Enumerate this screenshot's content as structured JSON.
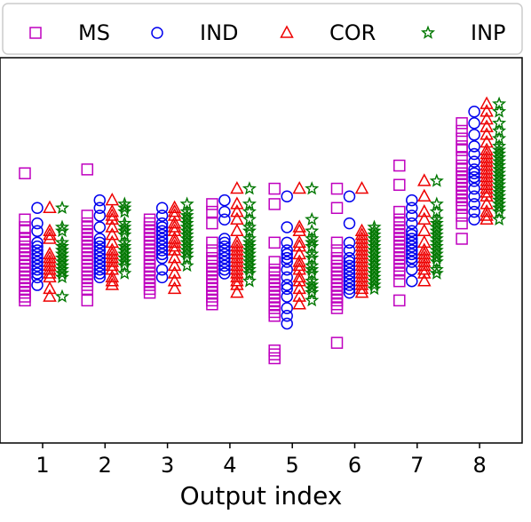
{
  "chart_data": {
    "type": "scatter",
    "xlabel": "Output index",
    "ylabel": "",
    "title": "",
    "categories": [
      "1",
      "2",
      "3",
      "4",
      "5",
      "6",
      "7",
      "8"
    ],
    "ylim": [
      0,
      1
    ],
    "y_ticks_shown": false,
    "grid": false,
    "legend_position": "top",
    "series": [
      {
        "name": "MS",
        "marker": "square",
        "color": "#bf00bf",
        "values": [
          [
            0.7,
            0.58,
            0.56,
            0.55,
            0.53,
            0.52,
            0.51,
            0.5,
            0.49,
            0.48,
            0.47,
            0.46,
            0.45,
            0.44,
            0.43,
            0.42,
            0.41,
            0.4,
            0.39,
            0.38,
            0.37
          ],
          [
            0.71,
            0.59,
            0.57,
            0.56,
            0.55,
            0.54,
            0.53,
            0.52,
            0.51,
            0.5,
            0.49,
            0.48,
            0.47,
            0.46,
            0.45,
            0.44,
            0.43,
            0.42,
            0.41,
            0.4,
            0.37
          ],
          [
            0.58,
            0.57,
            0.56,
            0.55,
            0.54,
            0.53,
            0.52,
            0.51,
            0.5,
            0.49,
            0.48,
            0.47,
            0.46,
            0.45,
            0.44,
            0.43,
            0.42,
            0.41,
            0.4,
            0.39
          ],
          [
            0.62,
            0.6,
            0.57,
            0.52,
            0.5,
            0.48,
            0.47,
            0.46,
            0.45,
            0.44,
            0.43,
            0.42,
            0.41,
            0.4,
            0.39,
            0.38,
            0.37,
            0.36
          ],
          [
            0.66,
            0.62,
            0.52,
            0.47,
            0.45,
            0.44,
            0.43,
            0.42,
            0.41,
            0.4,
            0.39,
            0.38,
            0.37,
            0.36,
            0.35,
            0.34,
            0.33,
            0.24,
            0.23,
            0.22
          ],
          [
            0.66,
            0.61,
            0.52,
            0.5,
            0.48,
            0.47,
            0.46,
            0.45,
            0.44,
            0.43,
            0.42,
            0.41,
            0.4,
            0.39,
            0.38,
            0.37,
            0.36,
            0.35,
            0.26
          ],
          [
            0.72,
            0.67,
            0.6,
            0.58,
            0.57,
            0.56,
            0.55,
            0.54,
            0.53,
            0.52,
            0.51,
            0.5,
            0.49,
            0.48,
            0.47,
            0.46,
            0.45,
            0.44,
            0.42,
            0.37
          ],
          [
            0.83,
            0.81,
            0.79,
            0.77,
            0.76,
            0.74,
            0.72,
            0.71,
            0.7,
            0.69,
            0.68,
            0.67,
            0.66,
            0.65,
            0.64,
            0.63,
            0.62,
            0.61,
            0.59,
            0.57,
            0.53
          ]
        ]
      },
      {
        "name": "IND",
        "marker": "circle",
        "color": "#0000ee",
        "values": [
          [
            0.61,
            0.57,
            0.55,
            0.52,
            0.51,
            0.5,
            0.49,
            0.48,
            0.47,
            0.46,
            0.45,
            0.44,
            0.43,
            0.41
          ],
          [
            0.63,
            0.61,
            0.59,
            0.56,
            0.53,
            0.52,
            0.51,
            0.5,
            0.49,
            0.48,
            0.47,
            0.46,
            0.45,
            0.44,
            0.43
          ],
          [
            0.61,
            0.59,
            0.57,
            0.56,
            0.55,
            0.54,
            0.53,
            0.52,
            0.51,
            0.5,
            0.49,
            0.48,
            0.45,
            0.43
          ],
          [
            0.63,
            0.6,
            0.58,
            0.53,
            0.52,
            0.51,
            0.5,
            0.49,
            0.48,
            0.47,
            0.46,
            0.45,
            0.44
          ],
          [
            0.64,
            0.56,
            0.52,
            0.5,
            0.49,
            0.48,
            0.47,
            0.45,
            0.43,
            0.41,
            0.4,
            0.38,
            0.35,
            0.33,
            0.31
          ],
          [
            0.64,
            0.57,
            0.52,
            0.5,
            0.48,
            0.47,
            0.46,
            0.45,
            0.44,
            0.43,
            0.42,
            0.41,
            0.4,
            0.39
          ],
          [
            0.63,
            0.61,
            0.59,
            0.57,
            0.55,
            0.54,
            0.53,
            0.52,
            0.51,
            0.5,
            0.49,
            0.48,
            0.47,
            0.45,
            0.42
          ],
          [
            0.86,
            0.83,
            0.8,
            0.77,
            0.75,
            0.73,
            0.71,
            0.7,
            0.69,
            0.68,
            0.66,
            0.64,
            0.62,
            0.6,
            0.58
          ]
        ]
      },
      {
        "name": "COR",
        "marker": "triangle",
        "color": "#ee0000",
        "values": [
          [
            0.61,
            0.55,
            0.54,
            0.53,
            0.49,
            0.48,
            0.47,
            0.46,
            0.45,
            0.44,
            0.43,
            0.4,
            0.38
          ],
          [
            0.63,
            0.6,
            0.59,
            0.58,
            0.56,
            0.54,
            0.52,
            0.5,
            0.49,
            0.48,
            0.47,
            0.46,
            0.45,
            0.43,
            0.42,
            0.41
          ],
          [
            0.61,
            0.6,
            0.59,
            0.57,
            0.56,
            0.55,
            0.53,
            0.52,
            0.51,
            0.5,
            0.48,
            0.46,
            0.44,
            0.42,
            0.4
          ],
          [
            0.66,
            0.62,
            0.6,
            0.58,
            0.55,
            0.52,
            0.51,
            0.5,
            0.49,
            0.48,
            0.47,
            0.46,
            0.45,
            0.44,
            0.43,
            0.42,
            0.41,
            0.39
          ],
          [
            0.66,
            0.56,
            0.55,
            0.52,
            0.51,
            0.49,
            0.47,
            0.46,
            0.45,
            0.43,
            0.42,
            0.4,
            0.38,
            0.36
          ],
          [
            0.66,
            0.55,
            0.54,
            0.53,
            0.52,
            0.51,
            0.5,
            0.49,
            0.48,
            0.47,
            0.46,
            0.45,
            0.44,
            0.43,
            0.42,
            0.41,
            0.4,
            0.39
          ],
          [
            0.68,
            0.64,
            0.6,
            0.58,
            0.55,
            0.52,
            0.5,
            0.49,
            0.48,
            0.47,
            0.46,
            0.45,
            0.44,
            0.42
          ],
          [
            0.88,
            0.86,
            0.84,
            0.82,
            0.8,
            0.78,
            0.76,
            0.75,
            0.74,
            0.73,
            0.72,
            0.71,
            0.7,
            0.69,
            0.68,
            0.67,
            0.66,
            0.65,
            0.64,
            0.62,
            0.6,
            0.59,
            0.58
          ]
        ]
      },
      {
        "name": "INP",
        "marker": "star",
        "color": "#007700",
        "values": [
          [
            0.61,
            0.56,
            0.55,
            0.52,
            0.51,
            0.5,
            0.49,
            0.48,
            0.47,
            0.46,
            0.45,
            0.44,
            0.43,
            0.38
          ],
          [
            0.62,
            0.61,
            0.6,
            0.57,
            0.56,
            0.55,
            0.54,
            0.52,
            0.51,
            0.5,
            0.49,
            0.48,
            0.47,
            0.46,
            0.44
          ],
          [
            0.62,
            0.6,
            0.59,
            0.58,
            0.57,
            0.56,
            0.55,
            0.54,
            0.53,
            0.52,
            0.51,
            0.5,
            0.49,
            0.48,
            0.46
          ],
          [
            0.66,
            0.62,
            0.6,
            0.58,
            0.56,
            0.55,
            0.53,
            0.52,
            0.51,
            0.5,
            0.49,
            0.48,
            0.47,
            0.46,
            0.45,
            0.44,
            0.42
          ],
          [
            0.66,
            0.58,
            0.55,
            0.53,
            0.52,
            0.51,
            0.49,
            0.48,
            0.46,
            0.45,
            0.44,
            0.42,
            0.41,
            0.4,
            0.39,
            0.37
          ],
          [
            0.56,
            0.55,
            0.54,
            0.53,
            0.52,
            0.51,
            0.5,
            0.49,
            0.48,
            0.47,
            0.46,
            0.45,
            0.44,
            0.43,
            0.42,
            0.41,
            0.4
          ],
          [
            0.68,
            0.62,
            0.6,
            0.58,
            0.57,
            0.56,
            0.55,
            0.54,
            0.53,
            0.52,
            0.51,
            0.5,
            0.49,
            0.48,
            0.47,
            0.45,
            0.44
          ],
          [
            0.88,
            0.86,
            0.83,
            0.81,
            0.79,
            0.77,
            0.76,
            0.75,
            0.74,
            0.73,
            0.72,
            0.71,
            0.7,
            0.69,
            0.68,
            0.67,
            0.66,
            0.65,
            0.64,
            0.63,
            0.62,
            0.61,
            0.6,
            0.58
          ]
        ]
      }
    ]
  }
}
